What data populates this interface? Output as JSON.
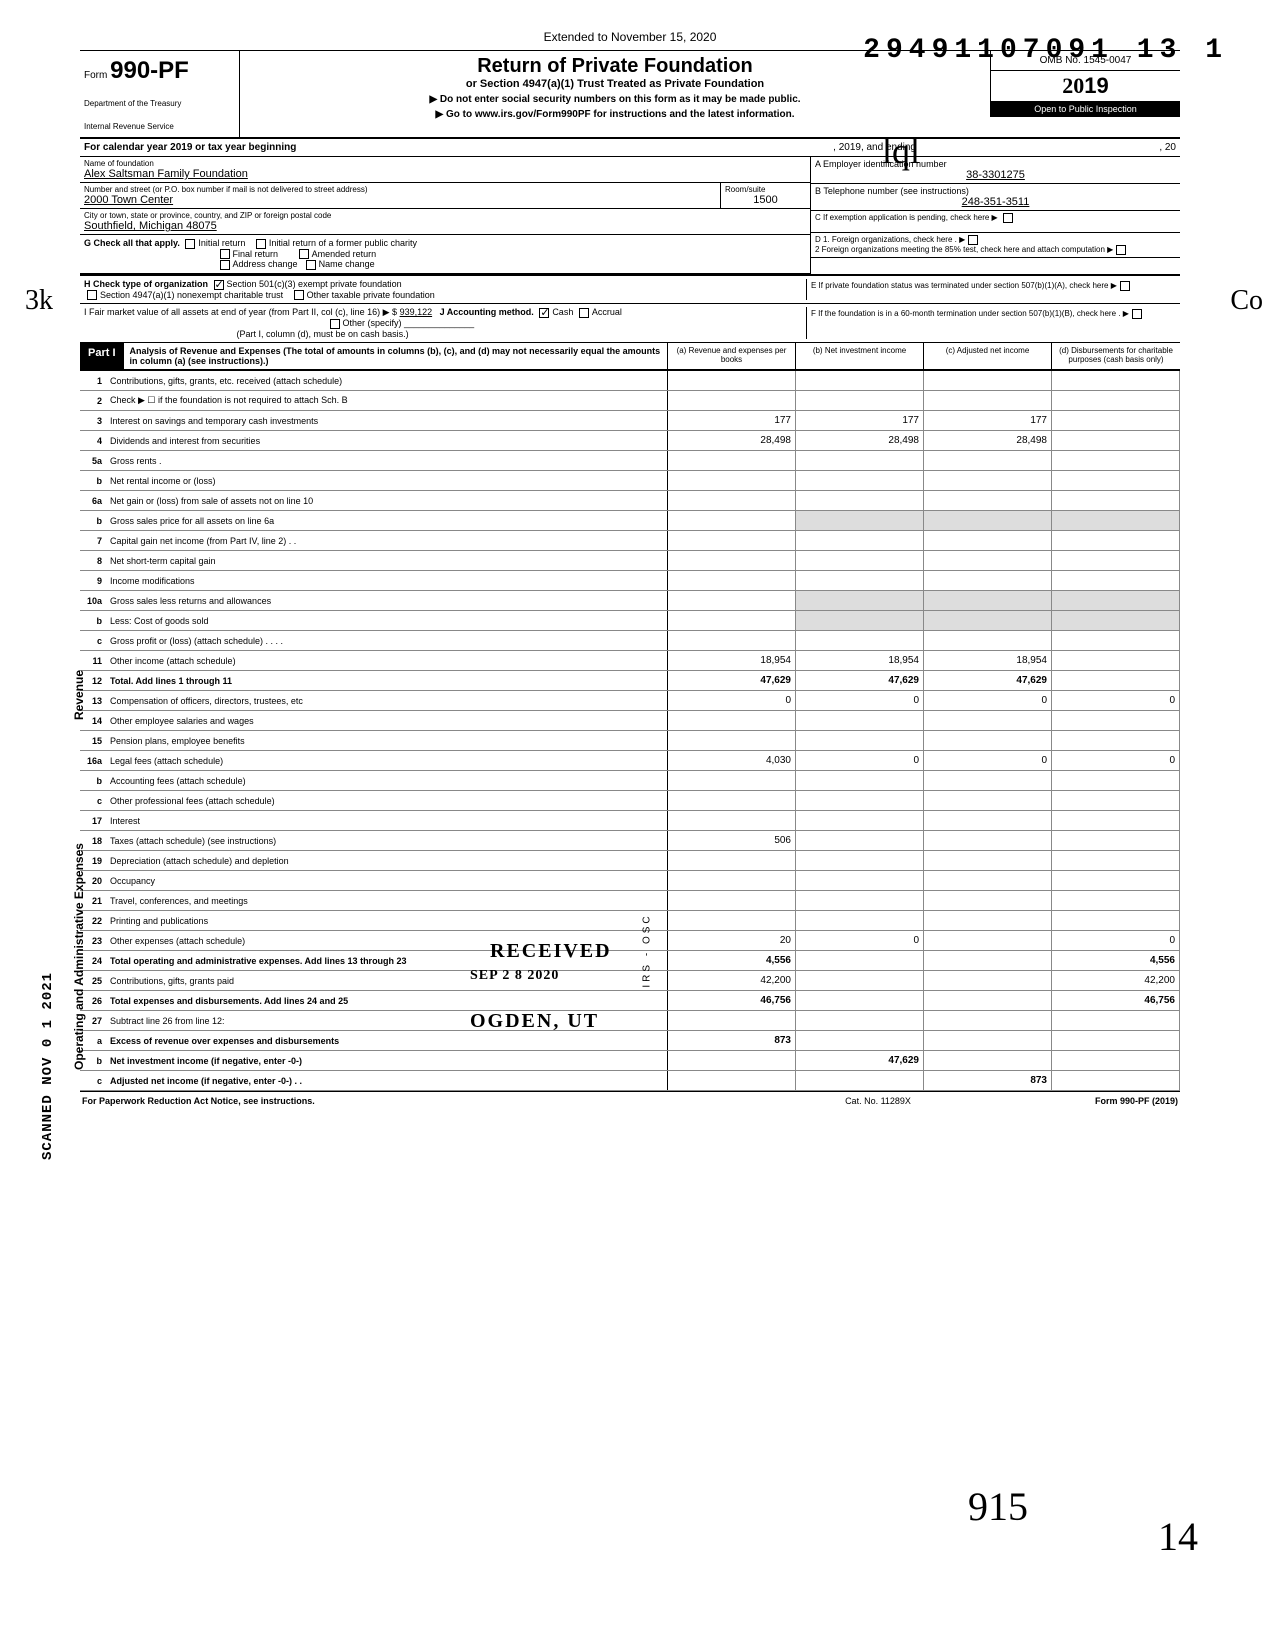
{
  "doc_id": "29491107091 13   1",
  "extended_note": "Extended to November 15, 2020",
  "form": {
    "prefix": "Form",
    "number": "990-PF",
    "dept1": "Department of the Treasury",
    "dept2": "Internal Revenue Service"
  },
  "title": {
    "main": "Return of Private Foundation",
    "sub": "or Section 4947(a)(1) Trust Treated as Private Foundation",
    "warn": "▶ Do not enter social security numbers on this form as it may be made public.",
    "goto": "▶ Go to www.irs.gov/Form990PF for instructions and the latest information."
  },
  "hand_initials": "lql",
  "omb": "OMB No. 1545-0047",
  "year_prefix": "20",
  "year_suffix": "19",
  "inspection": "Open to Public Inspection",
  "cal": {
    "label": "For calendar year 2019 or tax year beginning",
    "mid": ", 2019, and ending",
    "end": ", 20"
  },
  "foundation": {
    "name_label": "Name of foundation",
    "name": "Alex Saltsman Family Foundation",
    "addr_label": "Number and street (or P.O. box number if mail is not delivered to street address)",
    "addr": "2000 Town Center",
    "room_label": "Room/suite",
    "room": "1500",
    "city_label": "City or town, state or province, country, and ZIP or foreign postal code",
    "city": "Southfield, Michigan 48075"
  },
  "ein_label": "A  Employer identification number",
  "ein": "38-3301275",
  "phone_label": "B  Telephone number (see instructions)",
  "phone": "248-351-3511",
  "c_label": "C  If exemption application is pending, check here ▶",
  "d1": "D  1. Foreign organizations, check here .",
  "d2": "2  Foreign organizations meeting the 85% test, check here and attach computation",
  "e_label": "E  If private foundation status was terminated under section 507(b)(1)(A), check here",
  "f_label": "F  If the foundation is in a 60-month termination under section 507(b)(1)(B), check here",
  "g": {
    "label": "G  Check all that apply.",
    "opts": [
      "Initial return",
      "Initial return of a former public charity",
      "Final return",
      "Amended return",
      "Address change",
      "Name change"
    ]
  },
  "h": {
    "label": "H  Check type of organization",
    "opt1": "Section 501(c)(3) exempt private foundation",
    "opt2": "Section 4947(a)(1) nonexempt charitable trust",
    "opt3": "Other taxable private foundation"
  },
  "i": {
    "label": "I    Fair market value of all assets at end of year  (from Part II, col (c), line 16) ▶  $",
    "value": "939,122",
    "j_label": "J   Accounting method.",
    "j_cash": "Cash",
    "j_accrual": "Accrual",
    "j_other": "Other (specify)",
    "j_note": "(Part I, column (d), must be on cash basis.)"
  },
  "part1": {
    "label": "Part I",
    "desc": "Analysis of Revenue and Expenses (The total of amounts in columns (b), (c), and (d) may not necessarily equal the amounts in column (a) (see instructions).)",
    "col_a": "(a) Revenue and expenses per books",
    "col_b": "(b) Net investment income",
    "col_c": "(c) Adjusted net income",
    "col_d": "(d) Disbursements for charitable purposes (cash basis only)"
  },
  "rows": [
    {
      "n": "1",
      "d": "",
      "a": "",
      "b": "",
      "c": ""
    },
    {
      "n": "2",
      "d": "",
      "a": "",
      "b": "",
      "c": ""
    },
    {
      "n": "3",
      "d": "",
      "a": "177",
      "b": "177",
      "c": "177"
    },
    {
      "n": "4",
      "d": "",
      "a": "28,498",
      "b": "28,498",
      "c": "28,498"
    },
    {
      "n": "5a",
      "d": "",
      "a": "",
      "b": "",
      "c": ""
    },
    {
      "n": "b",
      "d": "",
      "a": "",
      "b": "",
      "c": ""
    },
    {
      "n": "6a",
      "d": "",
      "a": "",
      "b": "",
      "c": ""
    },
    {
      "n": "b",
      "d": "",
      "a": "",
      "b": "",
      "c": "",
      "shade_bcd": true
    },
    {
      "n": "7",
      "d": "",
      "a": "",
      "b": "",
      "c": ""
    },
    {
      "n": "8",
      "d": "",
      "a": "",
      "b": "",
      "c": ""
    },
    {
      "n": "9",
      "d": "",
      "a": "",
      "b": "",
      "c": ""
    },
    {
      "n": "10a",
      "d": "",
      "a": "",
      "b": "",
      "c": "",
      "shade_bcd": true
    },
    {
      "n": "b",
      "d": "",
      "a": "",
      "b": "",
      "c": "",
      "shade_bcd": true
    },
    {
      "n": "c",
      "d": "",
      "a": "",
      "b": "",
      "c": ""
    },
    {
      "n": "11",
      "d": "",
      "a": "18,954",
      "b": "18,954",
      "c": "18,954"
    },
    {
      "n": "12",
      "d": "",
      "a": "47,629",
      "b": "47,629",
      "c": "47,629",
      "bold": true
    },
    {
      "n": "13",
      "d": "0",
      "a": "0",
      "b": "0",
      "c": "0"
    },
    {
      "n": "14",
      "d": "",
      "a": "",
      "b": "",
      "c": ""
    },
    {
      "n": "15",
      "d": "",
      "a": "",
      "b": "",
      "c": ""
    },
    {
      "n": "16a",
      "d": "0",
      "a": "4,030",
      "b": "0",
      "c": "0"
    },
    {
      "n": "b",
      "d": "",
      "a": "",
      "b": "",
      "c": ""
    },
    {
      "n": "c",
      "d": "",
      "a": "",
      "b": "",
      "c": ""
    },
    {
      "n": "17",
      "d": "",
      "a": "",
      "b": "",
      "c": ""
    },
    {
      "n": "18",
      "d": "",
      "a": "506",
      "b": "",
      "c": ""
    },
    {
      "n": "19",
      "d": "",
      "a": "",
      "b": "",
      "c": ""
    },
    {
      "n": "20",
      "d": "",
      "a": "",
      "b": "",
      "c": ""
    },
    {
      "n": "21",
      "d": "",
      "a": "",
      "b": "",
      "c": ""
    },
    {
      "n": "22",
      "d": "",
      "a": "",
      "b": "",
      "c": ""
    },
    {
      "n": "23",
      "d": "0",
      "a": "20",
      "b": "0",
      "c": ""
    },
    {
      "n": "24",
      "d": "4,556",
      "a": "4,556",
      "b": "",
      "c": "",
      "bold": true
    },
    {
      "n": "25",
      "d": "42,200",
      "a": "42,200",
      "b": "",
      "c": ""
    },
    {
      "n": "26",
      "d": "46,756",
      "a": "46,756",
      "b": "",
      "c": "",
      "bold": true
    },
    {
      "n": "27",
      "d": "",
      "a": "",
      "b": "",
      "c": ""
    },
    {
      "n": "a",
      "d": "",
      "a": "873",
      "b": "",
      "c": "",
      "bold": true
    },
    {
      "n": "b",
      "d": "",
      "a": "",
      "b": "47,629",
      "c": "",
      "bold": true
    },
    {
      "n": "c",
      "d": "",
      "a": "",
      "b": "",
      "c": "873",
      "bold": true
    }
  ],
  "side": {
    "revenue": "Revenue",
    "operating": "Operating and Administrative Expenses",
    "scanned": "SCANNED NOV 0 1 2021"
  },
  "stamp": {
    "received": "RECEIVED",
    "date": "SEP 2 8 2020",
    "ogden": "OGDEN, UT",
    "side": "IRS - OSC"
  },
  "footer": {
    "left": "For Paperwork Reduction Act Notice, see instructions.",
    "center": "Cat. No. 11289X",
    "right": "Form 990-PF (2019)"
  },
  "sig1": "915",
  "sig2": "14",
  "margin_hand": "3k",
  "margin_hand2": "Co"
}
